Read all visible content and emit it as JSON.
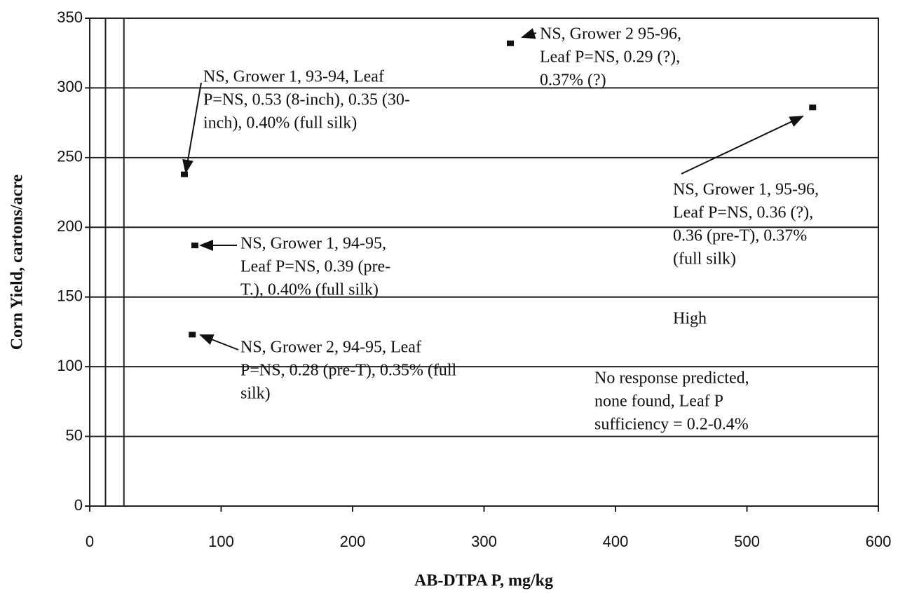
{
  "chart_data": {
    "type": "scatter",
    "x_label": "AB-DTPA P, mg/kg",
    "y_label": "Corn Yield, cartons/acre",
    "x": [
      72,
      80,
      78,
      320,
      550
    ],
    "values": [
      238,
      187,
      123,
      332,
      286
    ],
    "color": "#111111",
    "xlim": [
      0,
      600
    ],
    "xticks": [
      0,
      100,
      200,
      300,
      400,
      500,
      600
    ],
    "ylim": [
      0,
      350
    ],
    "yticks": [
      0,
      50,
      100,
      150,
      200,
      250,
      300,
      350
    ],
    "grid": true,
    "reference_lines": [
      12,
      26
    ],
    "annotations": [
      {
        "lines": [
          "NS, Grower 1, 93-94, Leaf",
          "P=NS, 0.53 (8-inch), 0.35 (30-",
          "inch), 0.40% (full silk)"
        ]
      },
      {
        "lines": [
          "NS, Grower 1, 94-95,",
          "Leaf P=NS, 0.39 (pre-",
          "T.), 0.40% (full silk)"
        ]
      },
      {
        "lines": [
          "NS, Grower 2, 94-95, Leaf",
          "P=NS, 0.28 (pre-T), 0.35% (full",
          "silk)"
        ]
      },
      {
        "lines": [
          "NS, Grower 2 95-96,",
          "Leaf P=NS, 0.29 (?),",
          "0.37% (?)"
        ]
      },
      {
        "lines": [
          "NS, Grower 1, 95-96,",
          "Leaf P=NS, 0.36 (?),",
          "0.36 (pre-T), 0.37%",
          "(full silk)"
        ]
      },
      {
        "lines": [
          "High"
        ]
      },
      {
        "lines": [
          "No response predicted,",
          "none found, Leaf P",
          "sufficiency = 0.2-0.4%"
        ]
      }
    ]
  }
}
